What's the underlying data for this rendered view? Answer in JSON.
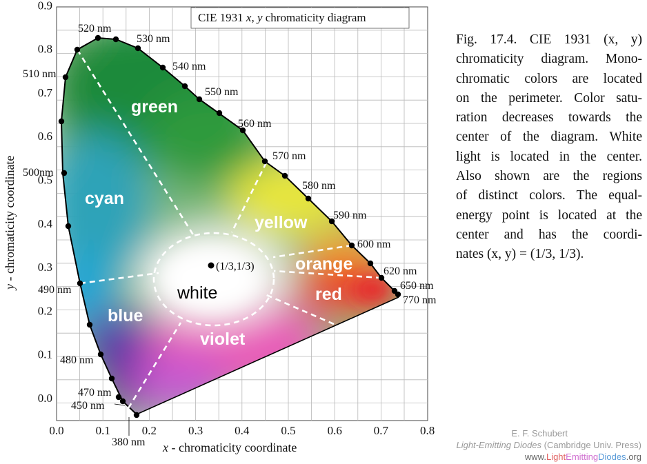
{
  "title": "CIE 1931 x, y chromaticity diagram",
  "title_prefix": "CIE 1931 ",
  "title_x": "x",
  "title_sep": ", ",
  "title_y": "y",
  "title_suffix": " chromaticity diagram",
  "x_axis_label_var": "x",
  "x_axis_label_rest": " - chromaticity coordinate",
  "y_axis_label_var": "y",
  "y_axis_label_rest": " - chromaticity  coordinate",
  "x_ticks": [
    "0.0",
    "0.1",
    "0.2",
    "0.3",
    "0.4",
    "0.5",
    "0.6",
    "0.7",
    "0.8"
  ],
  "y_ticks": [
    "0.0",
    "0.1",
    "0.2",
    "0.3",
    "0.4",
    "0.5",
    "0.6",
    "0.7",
    "0.8",
    "0.9"
  ],
  "wavelength_labels": [
    {
      "text": "380 nm"
    },
    {
      "text": "450 nm"
    },
    {
      "text": "470 nm"
    },
    {
      "text": "480 nm"
    },
    {
      "text": "490 nm"
    },
    {
      "text": "500nm"
    },
    {
      "text": "510 nm"
    },
    {
      "text": "520 nm"
    },
    {
      "text": "530 nm"
    },
    {
      "text": "540 nm"
    },
    {
      "text": "550 nm"
    },
    {
      "text": "560 nm"
    },
    {
      "text": "570 nm"
    },
    {
      "text": "580 nm"
    },
    {
      "text": "590 nm"
    },
    {
      "text": "600 nm"
    },
    {
      "text": "620 nm"
    },
    {
      "text": "650 nm"
    },
    {
      "text": "770 nm"
    }
  ],
  "region_labels": [
    "green",
    "cyan",
    "yellow",
    "orange",
    "white",
    "red",
    "blue",
    "violet"
  ],
  "equal_energy_label": "(1/3,1/3)",
  "caption_lines": [
    "Fig.  17.4.  CIE  1931  (x,  y)",
    "chromaticity diagram. Mono-",
    "chromatic  colors  are  located",
    "on the perimeter. Color satu-",
    "ration  decreases  towards  the",
    "center of the diagram. White",
    "light is located in the center.",
    "Also  shown  are  the  regions",
    "of distinct colors. The equal-",
    "energy point is located at the",
    "center   and   has   the   coordi-",
    "nates (x, y) = (1/3, 1/3)."
  ],
  "credit_author": "E. F. Schubert",
  "credit_book": "Light-Emitting Diodes",
  "credit_publisher": " (Cambridge Univ. Press)",
  "credit_url_pre": "www.",
  "credit_url_1": "Light",
  "credit_url_2": "Emitting",
  "credit_url_3": "Diodes",
  "credit_url_post": ".org"
}
